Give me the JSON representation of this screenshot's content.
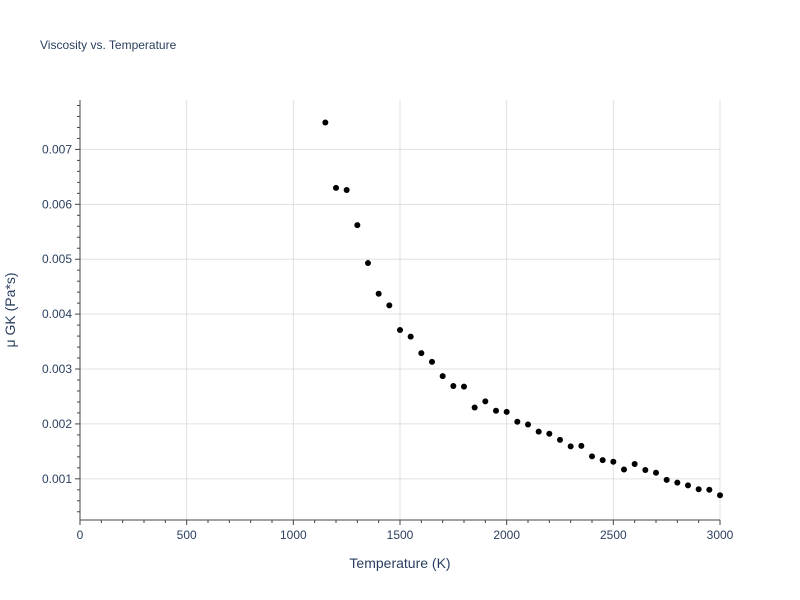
{
  "chart_data": {
    "type": "scatter",
    "title": "Viscosity vs. Temperature",
    "xlabel": "Temperature (K)",
    "ylabel": "μ GK (Pa*s)",
    "xlim": [
      0,
      3000
    ],
    "ylim": [
      0.00025,
      0.0079
    ],
    "x_ticks": [
      0,
      500,
      1000,
      1500,
      2000,
      2500,
      3000
    ],
    "x_tick_labels": [
      "0",
      "500",
      "1000",
      "1500",
      "2000",
      "2500",
      "3000"
    ],
    "y_ticks": [
      0.001,
      0.002,
      0.003,
      0.004,
      0.005,
      0.006,
      0.007
    ],
    "y_tick_labels": [
      "0.001",
      "0.002",
      "0.003",
      "0.004",
      "0.005",
      "0.006",
      "0.007"
    ],
    "grid": true,
    "marker_color": "#000000",
    "grid_color": "#e0e0e0",
    "series": [
      {
        "x": [
          1150,
          1200,
          1250,
          1300,
          1350,
          1400,
          1450,
          1500,
          1550,
          1600,
          1650,
          1700,
          1750,
          1800,
          1850,
          1900,
          1950,
          2000,
          2050,
          2100,
          2150,
          2200,
          2250,
          2300,
          2350,
          2400,
          2450,
          2500,
          2550,
          2600,
          2650,
          2700,
          2750,
          2800,
          2850,
          2900,
          2950,
          3000
        ],
        "y": [
          0.00749,
          0.0063,
          0.00626,
          0.00562,
          0.00493,
          0.00437,
          0.00416,
          0.00371,
          0.00359,
          0.00329,
          0.00313,
          0.00287,
          0.00269,
          0.00268,
          0.0023,
          0.00241,
          0.00224,
          0.00222,
          0.00204,
          0.00199,
          0.00186,
          0.00182,
          0.00171,
          0.00159,
          0.0016,
          0.00141,
          0.00134,
          0.00131,
          0.00117,
          0.00127,
          0.00116,
          0.00111,
          0.00098,
          0.00093,
          0.00088,
          0.00081,
          0.0008,
          0.0007
        ]
      }
    ]
  }
}
